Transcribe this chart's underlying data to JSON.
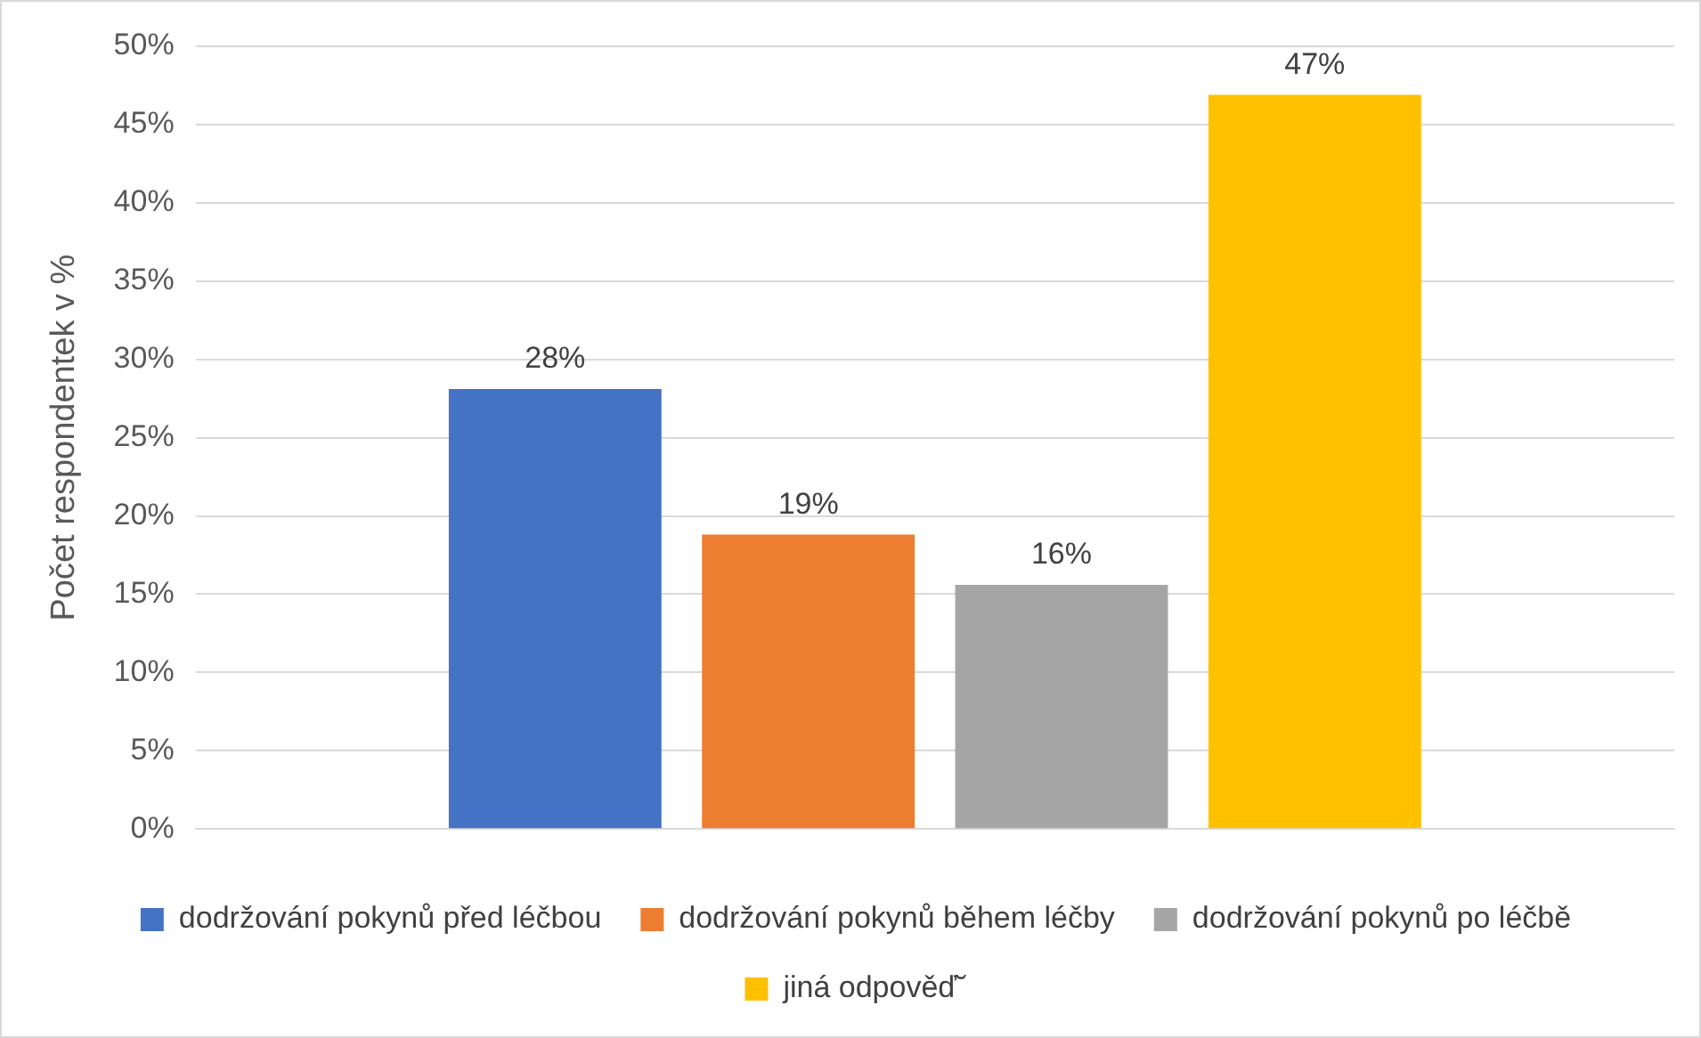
{
  "chart_data": {
    "type": "bar",
    "ylabel": "Počet respondentek v %",
    "categories": [
      null
    ],
    "series": [
      {
        "name": "dodržování pokynů před léčbou",
        "color": "#4472c4",
        "values": [
          28.1
        ],
        "value_labels": [
          "28%"
        ]
      },
      {
        "name": "dodržování pokynů během léčby",
        "color": "#ed7d31",
        "values": [
          18.8
        ],
        "value_labels": [
          "19%"
        ]
      },
      {
        "name": "dodržování pokynů po léčbě",
        "color": "#a5a5a5",
        "values": [
          15.6
        ],
        "value_labels": [
          "16%"
        ]
      },
      {
        "name": "jiná odpověď˘",
        "color": "#ffc000",
        "values": [
          46.9
        ],
        "value_labels": [
          "47%"
        ]
      }
    ],
    "ylim": [
      0,
      50
    ],
    "yticks": [
      {
        "value": 0,
        "label": "0%"
      },
      {
        "value": 5,
        "label": "5%"
      },
      {
        "value": 10,
        "label": "10%"
      },
      {
        "value": 15,
        "label": "15%"
      },
      {
        "value": 20,
        "label": "20%"
      },
      {
        "value": 25,
        "label": "25%"
      },
      {
        "value": 30,
        "label": "30%"
      },
      {
        "value": 35,
        "label": "35%"
      },
      {
        "value": 40,
        "label": "40%"
      },
      {
        "value": 45,
        "label": "45%"
      },
      {
        "value": 50,
        "label": "50%"
      }
    ],
    "grid": "y",
    "legend": "bottom"
  }
}
